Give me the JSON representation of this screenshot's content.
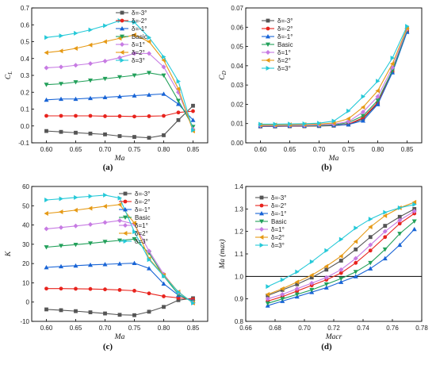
{
  "colors": {
    "d_m3": "#555555",
    "d_m2": "#e8231d",
    "d_m1": "#1864d6",
    "basic": "#22a05a",
    "d_p1": "#c77be3",
    "d_p2": "#e69a16",
    "d_p3": "#25c9d8"
  },
  "chart_data": [
    {
      "id": "a",
      "panel_label": "(a)",
      "type": "line",
      "xlabel": "Ma",
      "ylabel": "C_L",
      "xlim": [
        0.575,
        0.875
      ],
      "ylim": [
        -0.1,
        0.7
      ],
      "xticks": [
        "0.60",
        "0.65",
        "0.70",
        "0.75",
        "0.80",
        "0.85"
      ],
      "yticks": [
        "-0.1",
        "0.0",
        "0.1",
        "0.2",
        "0.3",
        "0.4",
        "0.5",
        "0.6",
        "0.7"
      ],
      "legend_position": "top-right",
      "x": [
        0.6,
        0.625,
        0.65,
        0.675,
        0.7,
        0.725,
        0.75,
        0.775,
        0.8,
        0.825,
        0.85
      ],
      "series": [
        {
          "name": "δ=-3°",
          "marker": "square",
          "color_key": "d_m3",
          "values": [
            -0.03,
            -0.035,
            -0.04,
            -0.045,
            -0.05,
            -0.06,
            -0.065,
            -0.07,
            -0.055,
            0.035,
            0.12
          ]
        },
        {
          "name": "δ=-2°",
          "marker": "circle",
          "color_key": "d_m2",
          "values": [
            0.06,
            0.06,
            0.06,
            0.06,
            0.058,
            0.058,
            0.056,
            0.058,
            0.06,
            0.08,
            0.088
          ]
        },
        {
          "name": "δ=-1°",
          "marker": "triangle-up",
          "color_key": "d_m1",
          "values": [
            0.155,
            0.16,
            0.16,
            0.165,
            0.17,
            0.175,
            0.18,
            0.185,
            0.19,
            0.13,
            0.035
          ]
        },
        {
          "name": "Basic",
          "marker": "triangle-down",
          "color_key": "basic",
          "values": [
            0.245,
            0.25,
            0.26,
            0.27,
            0.28,
            0.29,
            0.3,
            0.315,
            0.3,
            0.15,
            -0.005
          ]
        },
        {
          "name": "δ=1°",
          "marker": "diamond",
          "color_key": "d_p1",
          "values": [
            0.345,
            0.35,
            0.36,
            0.37,
            0.385,
            0.405,
            0.43,
            0.43,
            0.35,
            0.2,
            -0.02
          ]
        },
        {
          "name": "δ=2°",
          "marker": "triangle-left",
          "color_key": "d_p2",
          "values": [
            0.435,
            0.445,
            0.46,
            0.48,
            0.5,
            0.52,
            0.54,
            0.5,
            0.39,
            0.22,
            -0.03
          ]
        },
        {
          "name": "δ=3°",
          "marker": "triangle-right",
          "color_key": "d_p3",
          "values": [
            0.525,
            0.535,
            0.55,
            0.57,
            0.595,
            0.625,
            0.615,
            0.525,
            0.41,
            0.265,
            -0.025
          ]
        }
      ]
    },
    {
      "id": "b",
      "panel_label": "(b)",
      "type": "line",
      "xlabel": "Ma",
      "ylabel": "C_D",
      "xlim": [
        0.575,
        0.875
      ],
      "ylim": [
        0.0,
        0.07
      ],
      "xticks": [
        "0.60",
        "0.65",
        "0.70",
        "0.75",
        "0.80",
        "0.85"
      ],
      "yticks": [
        "0.00",
        "0.01",
        "0.02",
        "0.03",
        "0.04",
        "0.05",
        "0.06",
        "0.07"
      ],
      "legend_position": "top-left",
      "x": [
        0.6,
        0.625,
        0.65,
        0.675,
        0.7,
        0.725,
        0.75,
        0.775,
        0.8,
        0.825,
        0.85
      ],
      "series": [
        {
          "name": "δ=-3°",
          "marker": "square",
          "color_key": "d_m3",
          "values": [
            0.0085,
            0.0085,
            0.0086,
            0.0086,
            0.0087,
            0.0089,
            0.0095,
            0.0125,
            0.0205,
            0.037,
            0.058
          ]
        },
        {
          "name": "δ=-2°",
          "marker": "circle",
          "color_key": "d_m2",
          "values": [
            0.0086,
            0.0086,
            0.0087,
            0.0087,
            0.0088,
            0.009,
            0.0097,
            0.013,
            0.021,
            0.037,
            0.0585
          ]
        },
        {
          "name": "δ=-1°",
          "marker": "triangle-up",
          "color_key": "d_m1",
          "values": [
            0.0087,
            0.0087,
            0.0088,
            0.0088,
            0.0089,
            0.0091,
            0.0095,
            0.0115,
            0.02,
            0.0365,
            0.0575
          ]
        },
        {
          "name": "Basic",
          "marker": "triangle-down",
          "color_key": "basic",
          "values": [
            0.0088,
            0.0088,
            0.0089,
            0.0089,
            0.009,
            0.0093,
            0.0105,
            0.014,
            0.022,
            0.0375,
            0.0585
          ]
        },
        {
          "name": "δ=1°",
          "marker": "diamond",
          "color_key": "d_p1",
          "values": [
            0.009,
            0.009,
            0.0091,
            0.0091,
            0.0093,
            0.0097,
            0.011,
            0.016,
            0.024,
            0.039,
            0.059
          ]
        },
        {
          "name": "δ=2°",
          "marker": "triangle-left",
          "color_key": "d_p2",
          "values": [
            0.0093,
            0.0093,
            0.0094,
            0.0095,
            0.0097,
            0.0103,
            0.0125,
            0.0185,
            0.027,
            0.041,
            0.0595
          ]
        },
        {
          "name": "δ=3°",
          "marker": "triangle-right",
          "color_key": "d_p3",
          "values": [
            0.0097,
            0.0097,
            0.0098,
            0.0099,
            0.0102,
            0.0113,
            0.0165,
            0.024,
            0.032,
            0.044,
            0.0605
          ]
        }
      ]
    },
    {
      "id": "c",
      "panel_label": "(c)",
      "type": "line",
      "xlabel": "Ma",
      "ylabel": "K",
      "xlim": [
        0.575,
        0.875
      ],
      "ylim": [
        -10,
        60
      ],
      "xticks": [
        "0.60",
        "0.65",
        "0.70",
        "0.75",
        "0.80",
        "0.85"
      ],
      "yticks": [
        "-10",
        "0",
        "10",
        "20",
        "30",
        "40",
        "50",
        "60"
      ],
      "legend_position": "top-right",
      "x": [
        0.6,
        0.625,
        0.65,
        0.675,
        0.7,
        0.725,
        0.75,
        0.775,
        0.8,
        0.825,
        0.85
      ],
      "series": [
        {
          "name": "δ=-3°",
          "marker": "square",
          "color_key": "d_m3",
          "values": [
            -3.8,
            -4.2,
            -4.7,
            -5.3,
            -5.9,
            -6.6,
            -6.8,
            -5.0,
            -2.5,
            1.0,
            2.0
          ]
        },
        {
          "name": "δ=-2°",
          "marker": "circle",
          "color_key": "d_m2",
          "values": [
            7.0,
            7.0,
            6.9,
            6.8,
            6.6,
            6.3,
            5.9,
            4.5,
            3.0,
            2.2,
            1.5
          ]
        },
        {
          "name": "δ=-1°",
          "marker": "triangle-up",
          "color_key": "d_m1",
          "values": [
            18.0,
            18.5,
            18.9,
            19.3,
            19.6,
            19.9,
            20.2,
            17.5,
            9.5,
            3.6,
            0.6
          ]
        },
        {
          "name": "Basic",
          "marker": "triangle-down",
          "color_key": "basic",
          "values": [
            28.5,
            29.2,
            29.8,
            30.5,
            31.3,
            32.0,
            32.7,
            25.5,
            13.5,
            4.0,
            0.0
          ]
        },
        {
          "name": "δ=1°",
          "marker": "diamond",
          "color_key": "d_p1",
          "values": [
            38.0,
            38.7,
            39.5,
            40.3,
            41.3,
            42.3,
            40.5,
            26.5,
            14.5,
            5.0,
            -0.3
          ]
        },
        {
          "name": "δ=2°",
          "marker": "triangle-left",
          "color_key": "d_p2",
          "values": [
            46.0,
            46.8,
            47.7,
            48.7,
            49.7,
            50.6,
            41.0,
            22.5,
            14.0,
            5.3,
            -0.5
          ]
        },
        {
          "name": "δ=3°",
          "marker": "triangle-right",
          "color_key": "d_p3",
          "values": [
            53.0,
            53.6,
            54.3,
            54.9,
            55.5,
            54.0,
            36.5,
            22.0,
            13.5,
            5.2,
            -0.5
          ]
        }
      ]
    },
    {
      "id": "d",
      "panel_label": "(d)",
      "type": "line",
      "xlabel": "Macr",
      "ylabel": "Ma (max)",
      "xlim": [
        0.66,
        0.78
      ],
      "ylim": [
        0.8,
        1.4
      ],
      "xticks": [
        "0.66",
        "0.68",
        "0.70",
        "0.72",
        "0.74",
        "0.76",
        "0.78"
      ],
      "yticks": [
        "0.8",
        "0.9",
        "1.0",
        "1.1",
        "1.2",
        "1.3",
        "1.4"
      ],
      "reference_line_y": 1.0,
      "legend_position": "top-left",
      "x": [
        0.675,
        0.685,
        0.695,
        0.705,
        0.715,
        0.725,
        0.735,
        0.745,
        0.755,
        0.765,
        0.775
      ],
      "series": [
        {
          "name": "δ=-3°",
          "marker": "square",
          "color_key": "d_m3",
          "values": [
            0.915,
            0.94,
            0.965,
            0.995,
            1.03,
            1.07,
            1.12,
            1.175,
            1.225,
            1.265,
            1.3
          ]
        },
        {
          "name": "δ=-2°",
          "marker": "circle",
          "color_key": "d_m2",
          "values": [
            0.89,
            0.91,
            0.935,
            0.96,
            0.985,
            1.015,
            1.06,
            1.115,
            1.175,
            1.235,
            1.28
          ]
        },
        {
          "name": "δ=-1°",
          "marker": "triangle-up",
          "color_key": "d_m1",
          "values": [
            0.87,
            0.89,
            0.91,
            0.93,
            0.95,
            0.975,
            1.0,
            1.035,
            1.08,
            1.14,
            1.21
          ]
        },
        {
          "name": "Basic",
          "marker": "triangle-down",
          "color_key": "basic",
          "values": [
            0.88,
            0.9,
            0.92,
            0.94,
            0.965,
            0.99,
            1.02,
            1.06,
            1.12,
            1.19,
            1.245
          ]
        },
        {
          "name": "δ=1°",
          "marker": "diamond",
          "color_key": "d_p1",
          "values": [
            0.9,
            0.92,
            0.945,
            0.97,
            0.995,
            1.03,
            1.08,
            1.14,
            1.2,
            1.25,
            1.29
          ]
        },
        {
          "name": "δ=2°",
          "marker": "triangle-left",
          "color_key": "d_p2",
          "values": [
            0.92,
            0.945,
            0.975,
            1.005,
            1.045,
            1.09,
            1.155,
            1.22,
            1.27,
            1.305,
            1.33
          ]
        },
        {
          "name": "δ=3°",
          "marker": "triangle-right",
          "color_key": "d_p3",
          "values": [
            0.955,
            0.985,
            1.02,
            1.065,
            1.115,
            1.165,
            1.215,
            1.255,
            1.285,
            1.305,
            1.32
          ]
        }
      ]
    }
  ]
}
